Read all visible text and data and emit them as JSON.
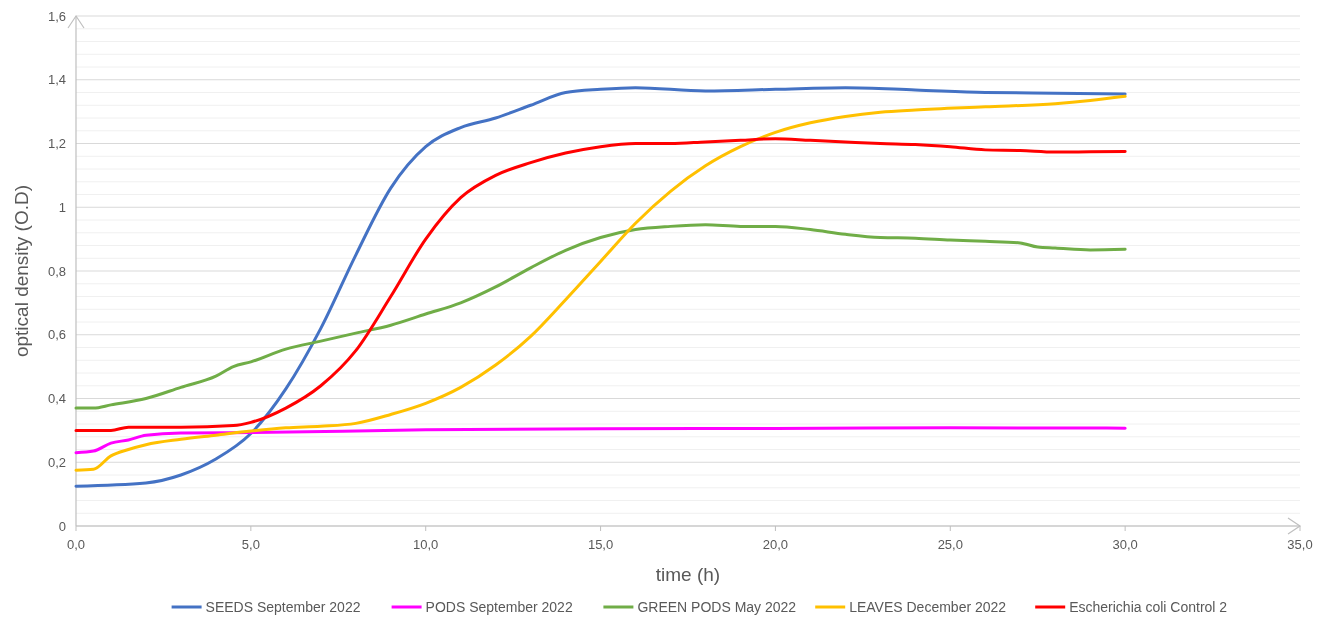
{
  "chart_data": {
    "type": "line",
    "xlabel": "time (h)",
    "ylabel": "optical density (O.D)",
    "xlim": [
      0,
      35
    ],
    "ylim": [
      0,
      1.6
    ],
    "xticks": [
      {
        "value": 0,
        "label": "0,0"
      },
      {
        "value": 5,
        "label": "5,0"
      },
      {
        "value": 10,
        "label": "10,0"
      },
      {
        "value": 15,
        "label": "15,0"
      },
      {
        "value": 20,
        "label": "20,0"
      },
      {
        "value": 25,
        "label": "25,0"
      },
      {
        "value": 30,
        "label": "30,0"
      },
      {
        "value": 35,
        "label": "35,0"
      }
    ],
    "yticks": [
      0,
      {
        "value": 0.04,
        "label": null
      },
      {
        "value": 0.08,
        "label": null
      },
      {
        "value": 0.12,
        "label": null
      },
      {
        "value": 0.16,
        "label": null
      },
      {
        "value": 0.2,
        "label": "0,2"
      },
      {
        "value": 0.24,
        "label": null
      },
      {
        "value": 0.28,
        "label": null
      },
      {
        "value": 0.32,
        "label": null
      },
      {
        "value": 0.36,
        "label": null
      },
      {
        "value": 0.4,
        "label": "0,4"
      },
      {
        "value": 0.44,
        "label": null
      },
      {
        "value": 0.48,
        "label": null
      },
      {
        "value": 0.52,
        "label": null
      },
      {
        "value": 0.56,
        "label": null
      },
      {
        "value": 0.6,
        "label": "0,6"
      },
      {
        "value": 0.64,
        "label": null
      },
      {
        "value": 0.68,
        "label": null
      },
      {
        "value": 0.72,
        "label": null
      },
      {
        "value": 0.76,
        "label": null
      },
      {
        "value": 0.8,
        "label": "0,8"
      },
      {
        "value": 0.84,
        "label": null
      },
      {
        "value": 0.88,
        "label": null
      },
      {
        "value": 0.92,
        "label": null
      },
      {
        "value": 0.96,
        "label": null
      },
      1,
      {
        "value": 1.04,
        "label": null
      },
      {
        "value": 1.08,
        "label": null
      },
      {
        "value": 1.12,
        "label": null
      },
      {
        "value": 1.16,
        "label": null
      },
      {
        "value": 1.2,
        "label": "1,2"
      },
      {
        "value": 1.24,
        "label": null
      },
      {
        "value": 1.28,
        "label": null
      },
      {
        "value": 1.32,
        "label": null
      },
      {
        "value": 1.36,
        "label": null
      },
      {
        "value": 1.4,
        "label": "1,4"
      },
      {
        "value": 1.44,
        "label": null
      },
      {
        "value": 1.48,
        "label": null
      },
      {
        "value": 1.52,
        "label": null
      },
      {
        "value": 1.56,
        "label": null
      },
      {
        "value": 1.6,
        "label": "1,6"
      }
    ],
    "grid": "y",
    "legend": "bottom",
    "marker": "none",
    "line_style": "solid",
    "series": [
      {
        "name": "SEEDS September 2022",
        "color": "#4472c4",
        "x": [
          0,
          2,
          3,
          4,
          5,
          6,
          7,
          8,
          9,
          10,
          11,
          12,
          13,
          14,
          15,
          16,
          18,
          20,
          22,
          24,
          26,
          28,
          30
        ],
        "values": [
          0.125,
          0.135,
          0.16,
          0.21,
          0.29,
          0.43,
          0.62,
          0.85,
          1.06,
          1.19,
          1.25,
          1.28,
          1.32,
          1.36,
          1.37,
          1.375,
          1.365,
          1.37,
          1.375,
          1.368,
          1.36,
          1.358,
          1.355
        ]
      },
      {
        "name": "PODS September 2022",
        "color": "#ff00ff",
        "x": [
          0,
          0.5,
          1,
          1.5,
          2,
          3,
          5,
          10,
          15,
          20,
          25,
          30
        ],
        "values": [
          0.23,
          0.235,
          0.26,
          0.27,
          0.285,
          0.292,
          0.293,
          0.302,
          0.305,
          0.306,
          0.308,
          0.307
        ]
      },
      {
        "name": "GREEN PODS May 2022",
        "color": "#70ad47",
        "x": [
          0,
          0.5,
          1,
          2,
          3,
          4,
          4.5,
          5,
          6,
          7,
          8,
          9,
          10,
          11,
          12,
          13,
          14,
          15,
          16,
          17,
          18,
          19,
          20,
          21,
          22,
          23,
          24,
          25,
          26,
          27,
          27.5,
          28,
          29,
          30
        ],
        "values": [
          0.37,
          0.37,
          0.38,
          0.4,
          0.435,
          0.47,
          0.5,
          0.515,
          0.555,
          0.58,
          0.605,
          0.63,
          0.665,
          0.7,
          0.75,
          0.81,
          0.865,
          0.905,
          0.93,
          0.94,
          0.945,
          0.94,
          0.94,
          0.93,
          0.915,
          0.905,
          0.903,
          0.897,
          0.893,
          0.888,
          0.875,
          0.872,
          0.866,
          0.868
        ]
      },
      {
        "name": "LEAVES December 2022",
        "color": "#ffc000",
        "x": [
          0,
          0.5,
          1,
          1.5,
          2,
          3,
          4,
          5,
          6,
          7,
          8,
          9,
          10,
          11,
          12,
          13,
          14,
          15,
          16,
          17,
          18,
          19,
          20,
          21,
          22,
          23,
          24,
          26,
          28,
          29,
          30
        ],
        "values": [
          0.175,
          0.178,
          0.22,
          0.24,
          0.255,
          0.272,
          0.285,
          0.298,
          0.308,
          0.313,
          0.322,
          0.35,
          0.385,
          0.435,
          0.505,
          0.595,
          0.71,
          0.83,
          0.95,
          1.05,
          1.13,
          1.19,
          1.235,
          1.265,
          1.285,
          1.298,
          1.305,
          1.315,
          1.325,
          1.335,
          1.348
        ]
      },
      {
        "name": "Escherichia coli Control 2",
        "color": "#ff0000",
        "x": [
          0,
          1,
          1.5,
          3,
          4.5,
          5,
          6,
          7,
          8,
          9,
          10,
          11,
          12,
          13,
          14,
          15,
          16,
          17,
          18,
          19,
          20,
          21,
          22,
          23,
          24,
          25,
          26,
          27,
          28,
          29,
          30
        ],
        "values": [
          0.3,
          0.3,
          0.31,
          0.31,
          0.315,
          0.325,
          0.37,
          0.44,
          0.55,
          0.72,
          0.9,
          1.03,
          1.1,
          1.14,
          1.17,
          1.19,
          1.2,
          1.2,
          1.205,
          1.21,
          1.215,
          1.21,
          1.205,
          1.2,
          1.197,
          1.19,
          1.18,
          1.178,
          1.173,
          1.174,
          1.175
        ]
      }
    ]
  }
}
